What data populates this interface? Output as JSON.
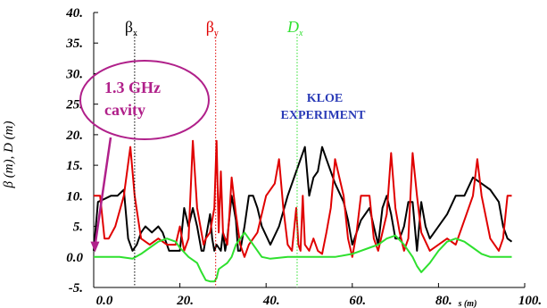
{
  "chart_data": {
    "type": "line",
    "xlabel": "s (m)",
    "ylabel": "β (m), D (m)",
    "xlim": [
      0,
      100
    ],
    "ylim": [
      -5,
      40
    ],
    "x_ticks": [
      "0.0",
      "20.",
      "40.",
      "60.",
      "80.",
      "100."
    ],
    "y_ticks": [
      "-5.",
      "0.0",
      "5.",
      "10.",
      "15.",
      "20.",
      "25.",
      "30.",
      "35.",
      "40."
    ],
    "grid": false,
    "series": [
      {
        "name": "βx",
        "color": "#000000",
        "x": [
          0,
          1,
          2.5,
          4,
          5.5,
          7,
          8,
          9,
          10,
          11,
          12,
          13.5,
          15,
          16,
          17,
          17.5,
          18,
          19,
          20,
          21,
          22,
          23,
          24,
          25,
          25.5,
          26,
          27,
          27.5,
          28,
          28.5,
          29.5,
          30,
          30.5,
          31,
          32,
          33,
          33.5,
          34,
          35,
          36,
          37,
          38,
          39,
          41,
          43,
          45,
          47,
          49,
          50,
          51,
          52,
          53,
          54,
          56,
          58,
          59,
          60,
          62,
          64,
          65,
          66,
          67,
          68,
          69,
          70,
          71,
          72,
          73,
          74,
          75,
          76,
          77,
          78,
          80,
          82,
          84,
          86,
          88,
          90,
          92,
          94,
          95,
          96,
          97
        ],
        "y": [
          1,
          9,
          9.5,
          10,
          10,
          11,
          3,
          1,
          2,
          4,
          5,
          4,
          5,
          4,
          2,
          1,
          1,
          1,
          1,
          8,
          5,
          8,
          5,
          1,
          1,
          3,
          7,
          3,
          1,
          2,
          1,
          4,
          1,
          3,
          10,
          6,
          1,
          1,
          5,
          10,
          10,
          8,
          5,
          2,
          5,
          10,
          14,
          18,
          10,
          13,
          14,
          18,
          16,
          12,
          9,
          6,
          2,
          6,
          8,
          5,
          2,
          8,
          10,
          7,
          3,
          3,
          5,
          9,
          9,
          1,
          9,
          5,
          3,
          5,
          7,
          10,
          10,
          13,
          12,
          11,
          9,
          5,
          3,
          2.5
        ]
      },
      {
        "name": "βy",
        "color": "#e00000",
        "x": [
          0,
          1.5,
          2.5,
          3.5,
          5,
          7,
          8.5,
          9.5,
          11,
          13,
          15,
          17,
          19,
          20,
          21,
          22,
          23,
          24,
          25.5,
          26,
          27,
          28,
          28.5,
          29,
          29.5,
          30,
          31,
          31.5,
          32,
          33,
          34,
          35,
          36,
          38,
          40,
          42,
          43,
          44,
          45,
          46,
          47,
          47.5,
          48,
          48.5,
          49,
          50,
          51,
          52,
          53,
          54,
          55,
          56,
          58,
          59,
          60,
          61,
          62,
          64,
          65,
          66,
          68,
          69,
          70,
          71,
          72,
          73,
          74,
          75,
          76,
          78,
          80,
          82,
          84,
          86,
          88,
          89,
          90,
          92,
          94,
          95,
          96,
          97
        ],
        "y": [
          10,
          10,
          3,
          3,
          5,
          10,
          18,
          10,
          3,
          2,
          3,
          2,
          2,
          5,
          1,
          3,
          19,
          8,
          2,
          3,
          4,
          8,
          19,
          4,
          14,
          4,
          2,
          7,
          13,
          7,
          2,
          0,
          2,
          4,
          10,
          12,
          16,
          8,
          2,
          1,
          8,
          2,
          1,
          10,
          2,
          1,
          3,
          1,
          0.5,
          4,
          8,
          16,
          10,
          3,
          0,
          4,
          10,
          10,
          3,
          1,
          7,
          17,
          8,
          4,
          1,
          3,
          17,
          10,
          4,
          1,
          2,
          3,
          2,
          6,
          10,
          16,
          10,
          3,
          1,
          3,
          10,
          10
        ]
      },
      {
        "name": "Dx",
        "color": "#2ee02e",
        "x": [
          0,
          6,
          9,
          11,
          13,
          15,
          17,
          19,
          20,
          22,
          24,
          25,
          26,
          27,
          28,
          28.5,
          29,
          30,
          31,
          32,
          33,
          34,
          35,
          37,
          39,
          41,
          45,
          50,
          56,
          60,
          64,
          66,
          68,
          70,
          72,
          74,
          75,
          76,
          78,
          80,
          82,
          84,
          86,
          88,
          90,
          92,
          94,
          96,
          97
        ],
        "y": [
          0,
          0,
          -0.3,
          0.5,
          1.5,
          2.5,
          3,
          2.5,
          1.5,
          0,
          -1,
          -2.5,
          -3.8,
          -4,
          -4,
          -3.5,
          -2,
          -1.5,
          -1,
          0,
          2,
          3,
          4,
          2,
          0,
          -0.3,
          0,
          0,
          0,
          0.5,
          1.5,
          2,
          3,
          3.5,
          2,
          0,
          -1.5,
          -2.5,
          -1,
          1,
          2.5,
          3,
          2.5,
          1.5,
          0.5,
          0,
          0,
          0,
          0
        ]
      }
    ],
    "annotations": {
      "bx_label_main": "β",
      "bx_label_sub": "x",
      "by_label_main": "β",
      "by_label_sub": "y",
      "dx_label_main": "D",
      "dx_label_sub": "x",
      "cavity_line1": "1.3 GHz",
      "cavity_line2": "cavity",
      "kloe_line1": "KLOE",
      "kloe_line2": "EXPERIMENT"
    },
    "colors": {
      "cavity": "#b0208a",
      "kloe": "#2a3bb7"
    }
  }
}
